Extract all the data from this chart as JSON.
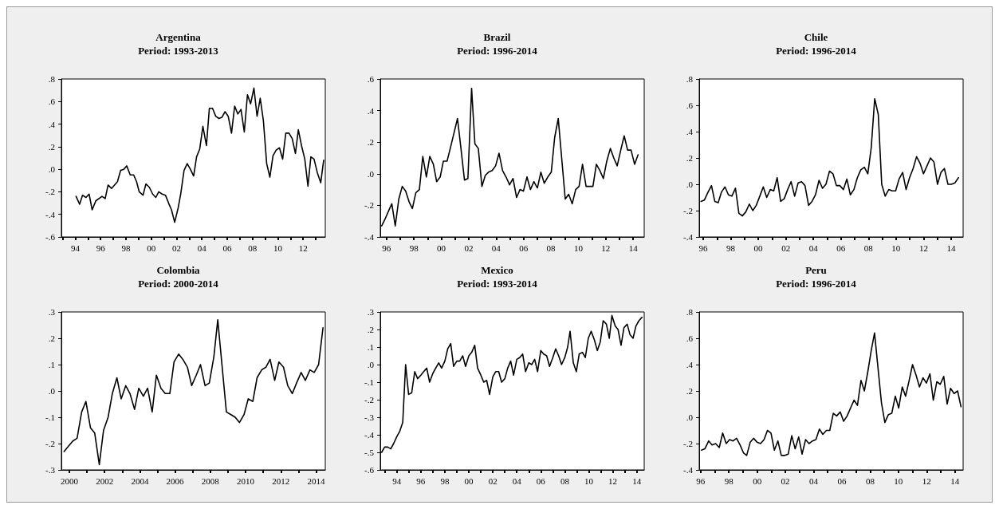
{
  "chart_data": [
    {
      "type": "line",
      "title": "Argentina",
      "subtitle": "Period: 1993-2013",
      "color": "#000000",
      "grid": false,
      "x": [
        1994.06,
        1994.34,
        1994.57,
        1994.84,
        1995.09,
        1995.33,
        1995.62,
        1996.11,
        1996.36,
        1996.59,
        1996.86,
        1997.33,
        1997.58,
        1997.83,
        1998.06,
        1998.34,
        1998.61,
        1998.84,
        1999.05,
        1999.35,
        1999.58,
        1999.85,
        2000.11,
        2000.36,
        2000.59,
        2000.86,
        2001.12,
        2001.37,
        2001.6,
        2001.85,
        2002.13,
        2002.34,
        2002.59,
        2002.84,
        2003.09,
        2003.35,
        2003.58,
        2003.83,
        2004.08,
        2004.36,
        2004.59,
        2004.84,
        2005.09,
        2005.35,
        2005.58,
        2005.83,
        2006.08,
        2006.34,
        2006.59,
        2006.84,
        2007.09,
        2007.35,
        2007.6,
        2007.85,
        2008.11,
        2008.36,
        2008.61,
        2008.86,
        2009.12,
        2009.37,
        2009.62,
        2009.87,
        2010.13,
        2010.38,
        2010.63,
        2010.88,
        2011.14,
        2011.39,
        2011.62,
        2011.87,
        2012.13,
        2012.38,
        2012.61,
        2012.86,
        2013.12,
        2013.39,
        2013.62
      ],
      "values": [
        -0.24,
        -0.31,
        -0.23,
        -0.25,
        -0.22,
        -0.36,
        -0.28,
        -0.24,
        -0.26,
        -0.14,
        -0.17,
        -0.11,
        -0.01,
        0.0,
        0.03,
        -0.05,
        -0.05,
        -0.11,
        -0.2,
        -0.23,
        -0.13,
        -0.16,
        -0.22,
        -0.25,
        -0.2,
        -0.22,
        -0.23,
        -0.3,
        -0.36,
        -0.47,
        -0.34,
        -0.21,
        -0.01,
        0.05,
        0.0,
        -0.06,
        0.11,
        0.18,
        0.38,
        0.21,
        0.54,
        0.54,
        0.47,
        0.45,
        0.46,
        0.51,
        0.47,
        0.32,
        0.56,
        0.49,
        0.53,
        0.33,
        0.66,
        0.58,
        0.72,
        0.47,
        0.63,
        0.43,
        0.05,
        -0.07,
        0.12,
        0.17,
        0.19,
        0.09,
        0.32,
        0.32,
        0.27,
        0.14,
        0.35,
        0.21,
        0.09,
        -0.15,
        0.11,
        0.09,
        -0.03,
        -0.12,
        0.08
      ],
      "xlim": [
        1992.9,
        2013.75
      ],
      "xticks": [
        {
          "value": 1993,
          "label": null
        },
        {
          "value": 1994,
          "label": "94"
        },
        {
          "value": 1995,
          "label": null
        },
        {
          "value": 1996,
          "label": "96"
        },
        {
          "value": 1997,
          "label": null
        },
        {
          "value": 1998,
          "label": "98"
        },
        {
          "value": 1999,
          "label": null
        },
        {
          "value": 2000,
          "label": "00"
        },
        {
          "value": 2001,
          "label": null
        },
        {
          "value": 2002,
          "label": "02"
        },
        {
          "value": 2003,
          "label": null
        },
        {
          "value": 2004,
          "label": "04"
        },
        {
          "value": 2005,
          "label": null
        },
        {
          "value": 2006,
          "label": "06"
        },
        {
          "value": 2007,
          "label": null
        },
        {
          "value": 2008,
          "label": "08"
        },
        {
          "value": 2009,
          "label": null
        },
        {
          "value": 2010,
          "label": "10"
        },
        {
          "value": 2011,
          "label": null
        },
        {
          "value": 2012,
          "label": "12"
        },
        {
          "value": 2013,
          "label": null
        }
      ],
      "ylim": [
        -0.6,
        0.8
      ],
      "yticks": [
        {
          "value": -0.6,
          "label": "-.6"
        },
        {
          "value": -0.4,
          "label": "-.4"
        },
        {
          "value": -0.2,
          "label": "-.2"
        },
        {
          "value": 0,
          "label": ".0"
        },
        {
          "value": 0.2,
          "label": ".2"
        },
        {
          "value": 0.4,
          "label": ".4"
        },
        {
          "value": 0.6,
          "label": ".6"
        },
        {
          "value": 0.8,
          "label": ".8"
        }
      ]
    },
    {
      "type": "line",
      "title": "Brazil",
      "subtitle": "Period: 1996-2014",
      "color": "#000000",
      "grid": false,
      "x": [
        1995.65,
        1995.88,
        1996.18,
        1996.39,
        1996.64,
        1996.9,
        1997.15,
        1997.4,
        1997.66,
        1997.89,
        1998.14,
        1998.4,
        1998.65,
        1998.91,
        1999.16,
        1999.42,
        1999.66,
        1999.92,
        2000.15,
        2000.42,
        2000.68,
        2000.93,
        2001.18,
        2001.42,
        2001.69,
        2001.94,
        2002.21,
        2002.45,
        2002.7,
        2002.96,
        2003.21,
        2003.44,
        2003.71,
        2003.96,
        2004.21,
        2004.47,
        2004.72,
        2004.98,
        2005.23,
        2005.49,
        2005.74,
        2005.99,
        2006.25,
        2006.5,
        2006.75,
        2007.01,
        2007.26,
        2007.51,
        2007.77,
        2008.02,
        2008.27,
        2008.53,
        2008.78,
        2009.04,
        2009.29,
        2009.55,
        2009.8,
        2010.05,
        2010.3,
        2010.56,
        2010.81,
        2011.06,
        2011.31,
        2011.57,
        2011.82,
        2012.07,
        2012.33,
        2012.58,
        2012.83,
        2013.09,
        2013.34,
        2013.59,
        2013.84,
        2014.1,
        2014.35
      ],
      "values": [
        -0.33,
        -0.29,
        -0.23,
        -0.19,
        -0.33,
        -0.16,
        -0.08,
        -0.11,
        -0.18,
        -0.22,
        -0.12,
        -0.1,
        0.11,
        -0.02,
        0.11,
        0.06,
        -0.05,
        -0.02,
        0.08,
        0.08,
        0.17,
        0.26,
        0.35,
        0.17,
        -0.04,
        -0.03,
        0.54,
        0.19,
        0.16,
        -0.08,
        -0.01,
        0.01,
        0.02,
        0.05,
        0.13,
        0.02,
        -0.02,
        -0.07,
        -0.03,
        -0.15,
        -0.1,
        -0.11,
        -0.02,
        -0.1,
        -0.05,
        -0.09,
        0.01,
        -0.06,
        -0.02,
        0.01,
        0.23,
        0.35,
        0.1,
        -0.16,
        -0.13,
        -0.19,
        -0.1,
        -0.08,
        0.06,
        -0.08,
        -0.08,
        -0.08,
        0.06,
        0.02,
        -0.03,
        0.08,
        0.16,
        0.1,
        0.05,
        0.15,
        0.24,
        0.15,
        0.15,
        0.06,
        0.12
      ],
      "xlim": [
        1995.55,
        2014.8
      ],
      "xticks": [
        {
          "value": 1996,
          "label": "96"
        },
        {
          "value": 1997,
          "label": null
        },
        {
          "value": 1998,
          "label": "98"
        },
        {
          "value": 1999,
          "label": null
        },
        {
          "value": 2000,
          "label": "00"
        },
        {
          "value": 2001,
          "label": null
        },
        {
          "value": 2002,
          "label": "02"
        },
        {
          "value": 2003,
          "label": null
        },
        {
          "value": 2004,
          "label": "04"
        },
        {
          "value": 2005,
          "label": null
        },
        {
          "value": 2006,
          "label": "06"
        },
        {
          "value": 2007,
          "label": null
        },
        {
          "value": 2008,
          "label": "08"
        },
        {
          "value": 2009,
          "label": null
        },
        {
          "value": 2010,
          "label": "10"
        },
        {
          "value": 2011,
          "label": null
        },
        {
          "value": 2012,
          "label": "12"
        },
        {
          "value": 2013,
          "label": null
        },
        {
          "value": 2014,
          "label": "14"
        }
      ],
      "ylim": [
        -0.4,
        0.6
      ],
      "yticks": [
        {
          "value": -0.4,
          "label": "-.4"
        },
        {
          "value": -0.2,
          "label": "-.2"
        },
        {
          "value": 0,
          "label": ".0"
        },
        {
          "value": 0.2,
          "label": ".2"
        },
        {
          "value": 0.4,
          "label": ".4"
        },
        {
          "value": 0.6,
          "label": ".6"
        }
      ]
    },
    {
      "type": "line",
      "title": "Chile",
      "subtitle": "Period: 1996-2014",
      "color": "#000000",
      "grid": false,
      "x": [
        1995.84,
        1996.08,
        1996.35,
        1996.6,
        1996.84,
        1997.09,
        1997.32,
        1997.58,
        1997.83,
        1998.08,
        1998.34,
        1998.59,
        1998.84,
        1999.09,
        1999.35,
        1999.6,
        1999.85,
        2000.11,
        2000.36,
        2000.61,
        2000.87,
        2001.12,
        2001.37,
        2001.62,
        2001.88,
        2002.13,
        2002.38,
        2002.64,
        2002.89,
        2003.14,
        2003.39,
        2003.65,
        2003.9,
        2004.15,
        2004.41,
        2004.66,
        2004.91,
        2005.17,
        2005.42,
        2005.67,
        2005.92,
        2006.18,
        2006.43,
        2006.68,
        2006.94,
        2007.19,
        2007.44,
        2007.7,
        2007.95,
        2008.2,
        2008.45,
        2008.71,
        2008.96,
        2009.21,
        2009.47,
        2009.72,
        2009.97,
        2010.22,
        2010.48,
        2010.73,
        2010.98,
        2011.24,
        2011.49,
        2011.74,
        2011.99,
        2012.25,
        2012.5,
        2012.75,
        2013.01,
        2013.26,
        2013.51,
        2013.77,
        2014.02,
        2014.27,
        2014.53
      ],
      "values": [
        -0.13,
        -0.12,
        -0.06,
        -0.01,
        -0.13,
        -0.14,
        -0.06,
        -0.02,
        -0.08,
        -0.09,
        -0.03,
        -0.22,
        -0.24,
        -0.21,
        -0.15,
        -0.2,
        -0.16,
        -0.09,
        -0.02,
        -0.1,
        -0.04,
        -0.05,
        0.05,
        -0.13,
        -0.11,
        -0.04,
        0.02,
        -0.09,
        0.01,
        0.02,
        -0.01,
        -0.16,
        -0.13,
        -0.08,
        0.03,
        -0.03,
        0.0,
        0.1,
        0.08,
        -0.01,
        -0.01,
        -0.04,
        0.04,
        -0.08,
        -0.04,
        0.05,
        0.11,
        0.13,
        0.08,
        0.28,
        0.65,
        0.53,
        0.0,
        -0.09,
        -0.04,
        -0.05,
        -0.05,
        0.04,
        0.09,
        -0.04,
        0.05,
        0.12,
        0.21,
        0.16,
        0.08,
        0.14,
        0.2,
        0.17,
        0.0,
        0.09,
        0.12,
        0.0,
        0.0,
        0.01,
        0.05
      ],
      "xlim": [
        1995.71,
        2014.87
      ],
      "xticks": [
        {
          "value": 1996,
          "label": "96"
        },
        {
          "value": 1997,
          "label": null
        },
        {
          "value": 1998,
          "label": "98"
        },
        {
          "value": 1999,
          "label": null
        },
        {
          "value": 2000,
          "label": "00"
        },
        {
          "value": 2001,
          "label": null
        },
        {
          "value": 2002,
          "label": "02"
        },
        {
          "value": 2003,
          "label": null
        },
        {
          "value": 2004,
          "label": "04"
        },
        {
          "value": 2005,
          "label": null
        },
        {
          "value": 2006,
          "label": "06"
        },
        {
          "value": 2007,
          "label": null
        },
        {
          "value": 2008,
          "label": "08"
        },
        {
          "value": 2009,
          "label": null
        },
        {
          "value": 2010,
          "label": "10"
        },
        {
          "value": 2011,
          "label": null
        },
        {
          "value": 2012,
          "label": "12"
        },
        {
          "value": 2013,
          "label": null
        },
        {
          "value": 2014,
          "label": "14"
        }
      ],
      "ylim": [
        -0.4,
        0.8
      ],
      "yticks": [
        {
          "value": -0.4,
          "label": "-.4"
        },
        {
          "value": -0.2,
          "label": "-.2"
        },
        {
          "value": 0,
          "label": ".0"
        },
        {
          "value": 0.2,
          "label": ".2"
        },
        {
          "value": 0.4,
          "label": ".4"
        },
        {
          "value": 0.6,
          "label": ".6"
        },
        {
          "value": 0.8,
          "label": ".8"
        }
      ]
    },
    {
      "type": "line",
      "title": "Colombia",
      "subtitle": "Period: 2000-2014",
      "color": "#000000",
      "grid": false,
      "x": [
        1999.7,
        1999.95,
        2000.2,
        2000.44,
        2000.7,
        2000.94,
        2001.2,
        2001.44,
        2001.7,
        2001.94,
        2002.2,
        2002.44,
        2002.7,
        2002.94,
        2003.2,
        2003.44,
        2003.7,
        2003.94,
        2004.2,
        2004.44,
        2004.7,
        2004.94,
        2005.2,
        2005.44,
        2005.7,
        2005.94,
        2006.2,
        2006.44,
        2006.7,
        2006.94,
        2007.2,
        2007.44,
        2007.7,
        2007.94,
        2008.2,
        2008.42,
        2008.91,
        2009.17,
        2009.41,
        2009.65,
        2009.91,
        2010.15,
        2010.41,
        2010.65,
        2010.91,
        2011.15,
        2011.39,
        2011.65,
        2011.89,
        2012.15,
        2012.39,
        2012.65,
        2012.89,
        2013.15,
        2013.39,
        2013.65,
        2013.89,
        2014.14,
        2014.39
      ],
      "values": [
        -0.23,
        -0.21,
        -0.19,
        -0.18,
        -0.08,
        -0.04,
        -0.14,
        -0.16,
        -0.28,
        -0.15,
        -0.1,
        -0.01,
        0.05,
        -0.03,
        0.02,
        -0.01,
        -0.07,
        0.01,
        -0.02,
        0.01,
        -0.08,
        0.06,
        0.01,
        -0.01,
        -0.01,
        0.11,
        0.14,
        0.12,
        0.09,
        0.02,
        0.06,
        0.1,
        0.02,
        0.03,
        0.13,
        0.27,
        -0.08,
        -0.09,
        -0.1,
        -0.12,
        -0.09,
        -0.03,
        -0.04,
        0.05,
        0.08,
        0.09,
        0.12,
        0.04,
        0.11,
        0.09,
        0.02,
        -0.01,
        0.03,
        0.07,
        0.04,
        0.08,
        0.07,
        0.1,
        0.24
      ],
      "xlim": [
        1999.55,
        2014.52
      ],
      "xticks": [
        2000,
        {
          "value": 2001,
          "label": null
        },
        2002,
        {
          "value": 2003,
          "label": null
        },
        2004,
        {
          "value": 2005,
          "label": null
        },
        2006,
        {
          "value": 2007,
          "label": null
        },
        2008,
        {
          "value": 2009,
          "label": null
        },
        2010,
        {
          "value": 2011,
          "label": null
        },
        2012,
        {
          "value": 2013,
          "label": null
        },
        2014
      ],
      "ylim": [
        -0.3,
        0.3
      ],
      "yticks": [
        {
          "value": -0.3,
          "label": "-.3"
        },
        {
          "value": -0.2,
          "label": "-.2"
        },
        {
          "value": -0.1,
          "label": "-.1"
        },
        {
          "value": 0,
          "label": ".0"
        },
        {
          "value": 0.1,
          "label": ".1"
        },
        {
          "value": 0.2,
          "label": ".2"
        },
        {
          "value": 0.3,
          "label": ".3"
        }
      ]
    },
    {
      "type": "line",
      "title": "Mexico",
      "subtitle": "Period: 1993-2014",
      "color": "#000000",
      "grid": false,
      "x": [
        1992.73,
        1992.98,
        1993.24,
        1993.49,
        1993.73,
        1994.0,
        1994.24,
        1994.49,
        1994.73,
        1994.98,
        1995.24,
        1995.49,
        1995.73,
        1996.0,
        1996.24,
        1996.49,
        1996.73,
        1997.0,
        1997.24,
        1997.49,
        1997.73,
        1998.0,
        1998.24,
        1998.49,
        1998.73,
        1999.0,
        1999.24,
        1999.49,
        1999.73,
        2000.0,
        2000.24,
        2000.49,
        2000.73,
        2001.0,
        2001.24,
        2001.49,
        2001.73,
        2002.0,
        2002.24,
        2002.49,
        2002.73,
        2003.0,
        2003.24,
        2003.49,
        2003.73,
        2004.0,
        2004.24,
        2004.49,
        2004.73,
        2005.0,
        2005.24,
        2005.49,
        2005.73,
        2006.0,
        2006.24,
        2006.49,
        2006.73,
        2007.0,
        2007.24,
        2007.49,
        2007.73,
        2008.0,
        2008.24,
        2008.44,
        2008.71,
        2008.96,
        2009.2,
        2009.47,
        2009.71,
        2009.96,
        2010.2,
        2010.47,
        2010.71,
        2010.96,
        2011.2,
        2011.47,
        2011.71,
        2011.93,
        2012.2,
        2012.44,
        2012.69,
        2012.93,
        2013.2,
        2013.44,
        2013.69,
        2013.93,
        2014.18,
        2014.44
      ],
      "values": [
        -0.5,
        -0.47,
        -0.47,
        -0.48,
        -0.45,
        -0.41,
        -0.38,
        -0.33,
        0.0,
        -0.17,
        -0.16,
        -0.04,
        -0.08,
        -0.06,
        -0.04,
        -0.02,
        -0.1,
        -0.05,
        -0.02,
        0.01,
        -0.02,
        0.02,
        0.09,
        0.12,
        -0.01,
        0.02,
        0.02,
        0.05,
        -0.01,
        0.05,
        0.07,
        0.11,
        -0.02,
        -0.06,
        -0.1,
        -0.09,
        -0.17,
        -0.07,
        -0.04,
        -0.04,
        -0.1,
        -0.08,
        -0.02,
        0.02,
        -0.06,
        0.03,
        0.04,
        0.06,
        -0.04,
        0.01,
        0.0,
        0.03,
        -0.04,
        0.08,
        0.06,
        0.05,
        -0.01,
        0.04,
        0.09,
        0.05,
        0.0,
        0.04,
        0.1,
        0.19,
        0.01,
        -0.04,
        0.06,
        0.07,
        0.04,
        0.15,
        0.19,
        0.14,
        0.08,
        0.13,
        0.25,
        0.23,
        0.15,
        0.28,
        0.22,
        0.2,
        0.11,
        0.21,
        0.23,
        0.17,
        0.15,
        0.22,
        0.25,
        0.27
      ],
      "xlim": [
        1992.62,
        2014.62
      ],
      "xticks": [
        {
          "value": 1993,
          "label": null
        },
        {
          "value": 1994,
          "label": "94"
        },
        {
          "value": 1995,
          "label": null
        },
        {
          "value": 1996,
          "label": "96"
        },
        {
          "value": 1997,
          "label": null
        },
        {
          "value": 1998,
          "label": "98"
        },
        {
          "value": 1999,
          "label": null
        },
        {
          "value": 2000,
          "label": "00"
        },
        {
          "value": 2001,
          "label": null
        },
        {
          "value": 2002,
          "label": "02"
        },
        {
          "value": 2003,
          "label": null
        },
        {
          "value": 2004,
          "label": "04"
        },
        {
          "value": 2005,
          "label": null
        },
        {
          "value": 2006,
          "label": "06"
        },
        {
          "value": 2007,
          "label": null
        },
        {
          "value": 2008,
          "label": "08"
        },
        {
          "value": 2009,
          "label": null
        },
        {
          "value": 2010,
          "label": "10"
        },
        {
          "value": 2011,
          "label": null
        },
        {
          "value": 2012,
          "label": "12"
        },
        {
          "value": 2013,
          "label": null
        },
        {
          "value": 2014,
          "label": "14"
        }
      ],
      "ylim": [
        -0.6,
        0.3
      ],
      "yticks": [
        {
          "value": -0.6,
          "label": "-.6"
        },
        {
          "value": -0.5,
          "label": "-.5"
        },
        {
          "value": -0.4,
          "label": "-.4"
        },
        {
          "value": -0.3,
          "label": "-.3"
        },
        {
          "value": -0.2,
          "label": "-.2"
        },
        {
          "value": -0.1,
          "label": "-.1"
        },
        {
          "value": 0,
          "label": ".0"
        },
        {
          "value": 0.1,
          "label": ".1"
        },
        {
          "value": 0.2,
          "label": ".2"
        },
        {
          "value": 0.3,
          "label": ".3"
        }
      ]
    },
    {
      "type": "line",
      "title": "Peru",
      "subtitle": "Period: 1996-2014",
      "color": "#000000",
      "grid": false,
      "x": [
        1996.06,
        1996.3,
        1996.57,
        1996.81,
        1997.06,
        1997.32,
        1997.56,
        1997.81,
        1998.05,
        1998.3,
        1998.54,
        1998.79,
        1999.03,
        1999.26,
        1999.51,
        1999.75,
        2000.0,
        2000.24,
        2000.49,
        2000.73,
        2000.98,
        2001.22,
        2001.47,
        2001.71,
        2001.96,
        2002.2,
        2002.45,
        2002.69,
        2002.94,
        2003.18,
        2003.43,
        2003.67,
        2003.92,
        2004.16,
        2004.41,
        2004.65,
        2004.9,
        2005.14,
        2005.39,
        2005.63,
        2005.88,
        2006.12,
        2006.37,
        2006.61,
        2006.86,
        2007.1,
        2007.35,
        2007.59,
        2007.84,
        2008.08,
        2008.31,
        2008.8,
        2009.04,
        2009.29,
        2009.53,
        2009.78,
        2010.02,
        2010.27,
        2010.51,
        2010.76,
        2011.0,
        2011.25,
        2011.49,
        2011.74,
        2011.98,
        2012.23,
        2012.47,
        2012.72,
        2012.96,
        2013.21,
        2013.45,
        2013.69,
        2013.94,
        2014.19,
        2014.43
      ],
      "values": [
        -0.25,
        -0.24,
        -0.18,
        -0.21,
        -0.2,
        -0.23,
        -0.12,
        -0.2,
        -0.17,
        -0.18,
        -0.16,
        -0.21,
        -0.27,
        -0.29,
        -0.19,
        -0.16,
        -0.19,
        -0.2,
        -0.17,
        -0.1,
        -0.12,
        -0.25,
        -0.18,
        -0.29,
        -0.29,
        -0.28,
        -0.14,
        -0.24,
        -0.15,
        -0.28,
        -0.17,
        -0.2,
        -0.18,
        -0.17,
        -0.09,
        -0.13,
        -0.1,
        -0.1,
        0.03,
        0.01,
        0.04,
        -0.03,
        0.01,
        0.07,
        0.13,
        0.09,
        0.28,
        0.2,
        0.35,
        0.51,
        0.64,
        0.11,
        -0.04,
        0.02,
        0.03,
        0.16,
        0.07,
        0.23,
        0.16,
        0.28,
        0.4,
        0.32,
        0.23,
        0.3,
        0.26,
        0.33,
        0.13,
        0.27,
        0.25,
        0.31,
        0.1,
        0.22,
        0.18,
        0.2,
        0.08
      ],
      "xlim": [
        1995.9,
        2014.58
      ],
      "xticks": [
        {
          "value": 1996,
          "label": "96"
        },
        {
          "value": 1997,
          "label": null
        },
        {
          "value": 1998,
          "label": "98"
        },
        {
          "value": 1999,
          "label": null
        },
        {
          "value": 2000,
          "label": "00"
        },
        {
          "value": 2001,
          "label": null
        },
        {
          "value": 2002,
          "label": "02"
        },
        {
          "value": 2003,
          "label": null
        },
        {
          "value": 2004,
          "label": "04"
        },
        {
          "value": 2005,
          "label": null
        },
        {
          "value": 2006,
          "label": "06"
        },
        {
          "value": 2007,
          "label": null
        },
        {
          "value": 2008,
          "label": "08"
        },
        {
          "value": 2009,
          "label": null
        },
        {
          "value": 2010,
          "label": "10"
        },
        {
          "value": 2011,
          "label": null
        },
        {
          "value": 2012,
          "label": "12"
        },
        {
          "value": 2013,
          "label": null
        },
        {
          "value": 2014,
          "label": "14"
        }
      ],
      "ylim": [
        -0.4,
        0.8
      ],
      "yticks": [
        {
          "value": -0.4,
          "label": "-.4"
        },
        {
          "value": -0.2,
          "label": "-.2"
        },
        {
          "value": 0,
          "label": ".0"
        },
        {
          "value": 0.2,
          "label": ".2"
        },
        {
          "value": 0.4,
          "label": ".4"
        },
        {
          "value": 0.6,
          "label": ".6"
        },
        {
          "value": 0.8,
          "label": ".8"
        }
      ]
    }
  ]
}
